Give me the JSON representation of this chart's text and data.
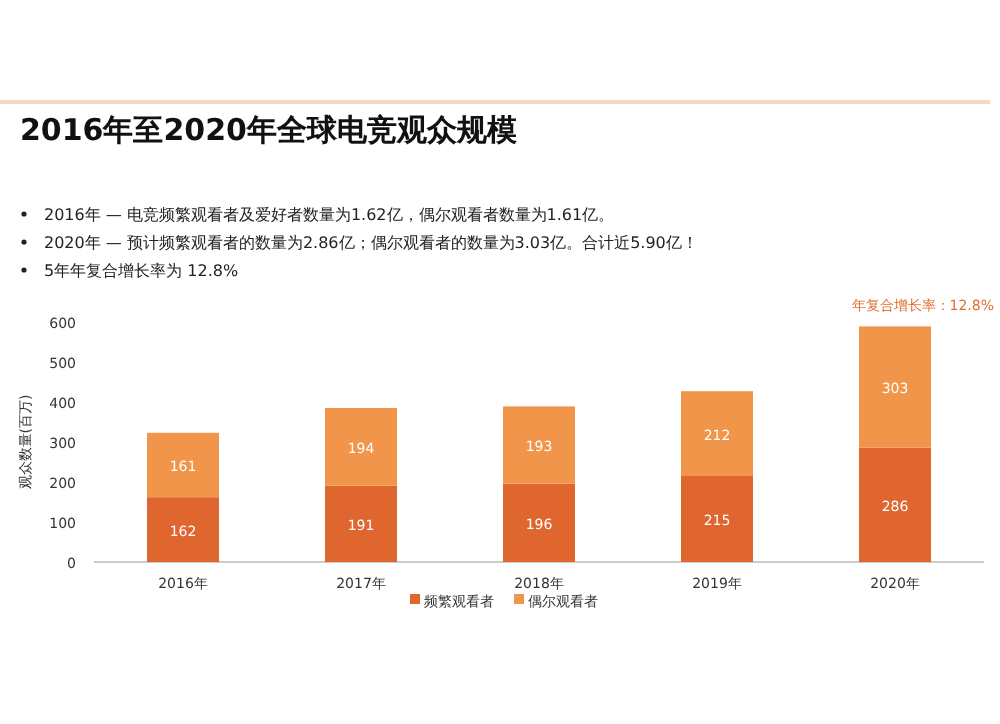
{
  "chart_data": {
    "type": "bar",
    "stacked": true,
    "title": "2016年至2020年全球电竞观众规模",
    "annotations": [
      "2016年 — 电竞频繁观看者及爱好者数量为1.62亿，偶尔观看者数量为1.61亿。",
      "2020年 — 预计频繁观看者的数量为2.86亿；偶尔观看者的数量为3.03亿。合计近5.90亿！",
      "5年年复合增长率为 12.8%",
      "年复合增长率：12.8%"
    ],
    "ylabel": "观众数量(百万)",
    "categories": [
      "2016年",
      "2017年",
      "2018年",
      "2019年",
      "2020年"
    ],
    "series": [
      {
        "name": "频繁观看者",
        "color": "#e0662f",
        "values": [
          162,
          191,
          196,
          215,
          286
        ]
      },
      {
        "name": "偶尔观看者",
        "color": "#f0954a",
        "values": [
          161,
          194,
          193,
          212,
          303
        ]
      }
    ],
    "ylim": [
      0,
      600
    ],
    "yticks": [
      0,
      100,
      200,
      300,
      400,
      500,
      600
    ],
    "data_labels": true,
    "legend": "bottom"
  }
}
